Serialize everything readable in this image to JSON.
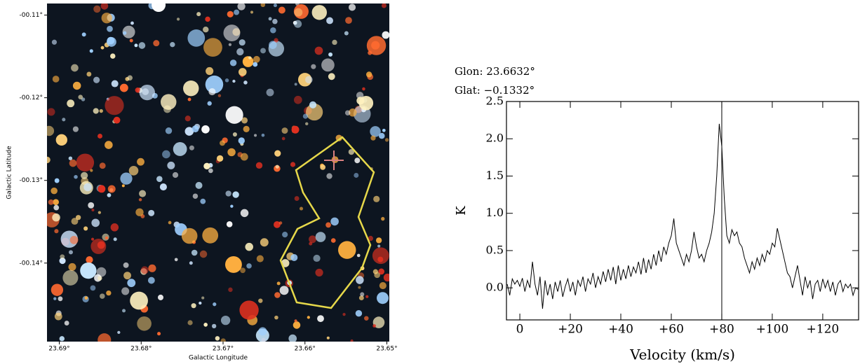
{
  "chart_data": [
    {
      "type": "image",
      "xlabel": "Galactic Longitude",
      "ylabel": "Galactic Latitude",
      "xlim": [
        23.6915,
        23.6497
      ],
      "ylim": [
        -0.1495,
        -0.1086
      ],
      "xticks": [
        {
          "value": 23.69,
          "label": "23.69°"
        },
        {
          "value": 23.68,
          "label": "23.68°"
        },
        {
          "value": 23.67,
          "label": "23.67°"
        },
        {
          "value": 23.66,
          "label": "23.66°"
        },
        {
          "value": 23.65,
          "label": "23.65°"
        }
      ],
      "yticks": [
        {
          "value": -0.11,
          "label": "-00.11°"
        },
        {
          "value": -0.12,
          "label": "-00.12°"
        },
        {
          "value": -0.13,
          "label": "-00.13°"
        },
        {
          "value": -0.14,
          "label": "-00.14°"
        }
      ]
    },
    {
      "type": "line",
      "annotations": [
        "Glon: 23.6632°",
        "Glat: −0.1332°"
      ],
      "xlabel": "Velocity (km/s)",
      "ylabel": "K",
      "color": "#000000",
      "xlim": [
        -5.3,
        134.2
      ],
      "ylim": [
        -0.43,
        2.5
      ],
      "xticks": [
        0,
        {
          "value": 20,
          "label": "+20"
        },
        {
          "value": 40,
          "label": "+40"
        },
        {
          "value": 60,
          "label": "+60"
        },
        {
          "value": 80,
          "label": "+80"
        },
        {
          "value": 100,
          "label": "+100"
        },
        {
          "value": 120,
          "label": "+120"
        }
      ],
      "yticks": [
        {
          "value": 0,
          "label": "0.0"
        },
        0.5,
        {
          "value": 1,
          "label": "1.0"
        },
        1.5,
        {
          "value": 2,
          "label": "2.0"
        },
        2.5
      ],
      "marker_x": 80,
      "x": [
        -5,
        -4,
        -3,
        -2,
        -1,
        0,
        1,
        2,
        3,
        4,
        5,
        6,
        7,
        8,
        9,
        10,
        11,
        12,
        13,
        14,
        15,
        16,
        17,
        18,
        19,
        20,
        21,
        22,
        23,
        24,
        25,
        26,
        27,
        28,
        29,
        30,
        31,
        32,
        33,
        34,
        35,
        36,
        37,
        38,
        39,
        40,
        41,
        42,
        43,
        44,
        45,
        46,
        47,
        48,
        49,
        50,
        51,
        52,
        53,
        54,
        55,
        56,
        57,
        58,
        59,
        60,
        61,
        62,
        63,
        64,
        65,
        66,
        67,
        68,
        69,
        70,
        71,
        72,
        73,
        74,
        75,
        76,
        77,
        78,
        79,
        80,
        81,
        82,
        83,
        84,
        85,
        86,
        87,
        88,
        89,
        90,
        91,
        92,
        93,
        94,
        95,
        96,
        97,
        98,
        99,
        100,
        101,
        102,
        103,
        104,
        105,
        106,
        107,
        108,
        109,
        110,
        111,
        112,
        113,
        114,
        115,
        116,
        117,
        118,
        119,
        120,
        121,
        122,
        123,
        124,
        125,
        126,
        127,
        128,
        129,
        130,
        131,
        132,
        133,
        134
      ],
      "values": [
        0.05,
        -0.1,
        0.12,
        0.05,
        0.1,
        0.02,
        0.13,
        -0.05,
        0.1,
        0.0,
        0.35,
        0.05,
        -0.1,
        0.15,
        -0.28,
        0.1,
        -0.1,
        0.05,
        -0.15,
        0.08,
        -0.05,
        0.1,
        -0.12,
        0.02,
        0.12,
        -0.05,
        0.08,
        -0.1,
        0.1,
        0.02,
        0.15,
        -0.05,
        0.12,
        0.05,
        0.2,
        0.0,
        0.15,
        0.05,
        0.22,
        0.08,
        0.25,
        0.1,
        0.28,
        0.05,
        0.3,
        0.1,
        0.25,
        0.12,
        0.3,
        0.15,
        0.28,
        0.2,
        0.35,
        0.18,
        0.4,
        0.2,
        0.38,
        0.25,
        0.45,
        0.3,
        0.5,
        0.35,
        0.55,
        0.45,
        0.6,
        0.7,
        0.93,
        0.6,
        0.5,
        0.4,
        0.3,
        0.45,
        0.35,
        0.5,
        0.75,
        0.55,
        0.4,
        0.45,
        0.35,
        0.5,
        0.6,
        0.75,
        1.0,
        1.5,
        2.2,
        1.9,
        1.2,
        0.7,
        0.6,
        0.78,
        0.7,
        0.75,
        0.6,
        0.55,
        0.4,
        0.3,
        0.2,
        0.35,
        0.25,
        0.4,
        0.3,
        0.45,
        0.35,
        0.5,
        0.45,
        0.6,
        0.55,
        0.8,
        0.65,
        0.5,
        0.35,
        0.2,
        0.15,
        0.0,
        0.15,
        0.3,
        0.1,
        -0.1,
        0.15,
        0.0,
        0.1,
        -0.15,
        0.05,
        0.1,
        -0.05,
        0.12,
        0.0,
        0.1,
        -0.05,
        0.08,
        -0.1,
        0.05,
        0.1,
        -0.05,
        0.05,
        0.0,
        0.05,
        -0.1,
        0.0,
        -0.02
      ]
    }
  ]
}
